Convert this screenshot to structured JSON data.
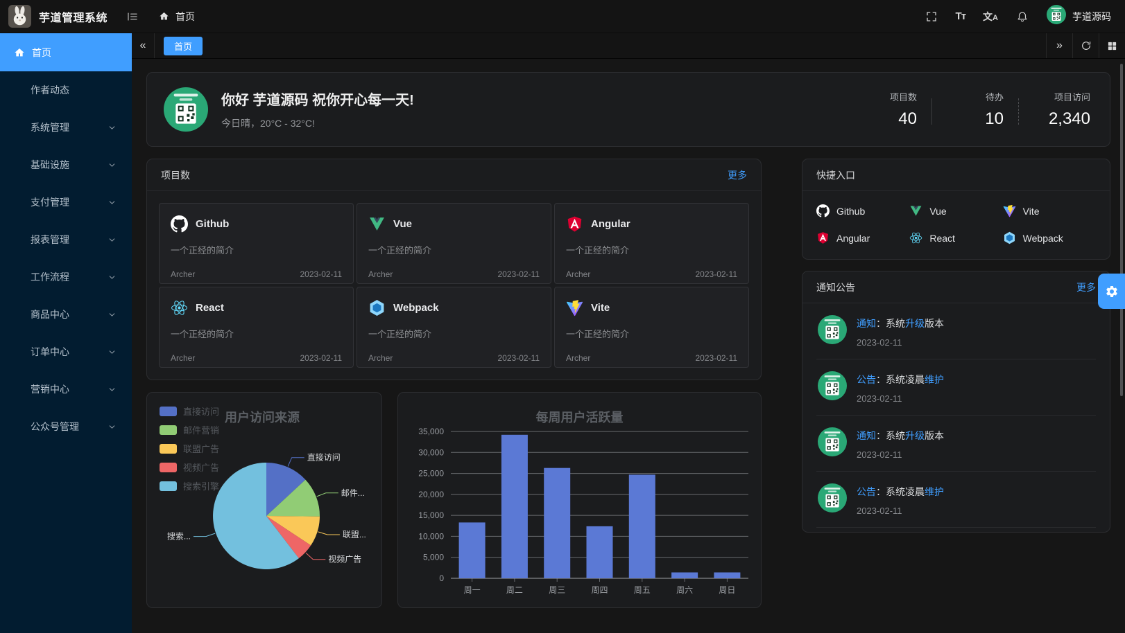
{
  "app": {
    "title": "芋道管理系统",
    "user": "芋道源码"
  },
  "topbar": {
    "breadcrumb": "首页"
  },
  "sidebar": {
    "items": [
      {
        "label": "首页",
        "active": true
      },
      {
        "label": "作者动态"
      },
      {
        "label": "系统管理",
        "expandable": true
      },
      {
        "label": "基础设施",
        "expandable": true
      },
      {
        "label": "支付管理",
        "expandable": true
      },
      {
        "label": "报表管理",
        "expandable": true
      },
      {
        "label": "工作流程",
        "expandable": true
      },
      {
        "label": "商品中心",
        "expandable": true
      },
      {
        "label": "订单中心",
        "expandable": true
      },
      {
        "label": "营销中心",
        "expandable": true
      },
      {
        "label": "公众号管理",
        "expandable": true
      }
    ]
  },
  "tabbar": {
    "tabs": [
      {
        "label": "首页",
        "active": true
      }
    ]
  },
  "welcome": {
    "greeting": "你好 芋道源码 祝你开心每一天!",
    "weather": "今日晴，20°C - 32°C!",
    "stats": [
      {
        "label": "项目数",
        "value": "40"
      },
      {
        "label": "待办",
        "value": "10"
      },
      {
        "label": "项目访问",
        "value": "2,340"
      }
    ]
  },
  "projects": {
    "title": "项目数",
    "more_label": "更多",
    "items": [
      {
        "name": "Github",
        "icon": "github",
        "desc": "一个正经的简介",
        "author": "Archer",
        "date": "2023-02-11"
      },
      {
        "name": "Vue",
        "icon": "vue",
        "desc": "一个正经的简介",
        "author": "Archer",
        "date": "2023-02-11"
      },
      {
        "name": "Angular",
        "icon": "angular",
        "desc": "一个正经的简介",
        "author": "Archer",
        "date": "2023-02-11"
      },
      {
        "name": "React",
        "icon": "react",
        "desc": "一个正经的简介",
        "author": "Archer",
        "date": "2023-02-11"
      },
      {
        "name": "Webpack",
        "icon": "webpack",
        "desc": "一个正经的简介",
        "author": "Archer",
        "date": "2023-02-11"
      },
      {
        "name": "Vite",
        "icon": "vite",
        "desc": "一个正经的简介",
        "author": "Archer",
        "date": "2023-02-11"
      }
    ]
  },
  "shortcuts": {
    "title": "快捷入口",
    "items": [
      {
        "name": "Github",
        "icon": "github"
      },
      {
        "name": "Vue",
        "icon": "vue"
      },
      {
        "name": "Vite",
        "icon": "vite"
      },
      {
        "name": "Angular",
        "icon": "angular"
      },
      {
        "name": "React",
        "icon": "react"
      },
      {
        "name": "Webpack",
        "icon": "webpack"
      }
    ]
  },
  "notices": {
    "title": "通知公告",
    "more_label": "更多",
    "items": [
      {
        "parts": [
          {
            "text": "通知",
            "hl": true
          },
          {
            "text": "：系统",
            "hl": false
          },
          {
            "text": "升级",
            "hl": true
          },
          {
            "text": "版本",
            "hl": false
          }
        ],
        "date": "2023-02-11"
      },
      {
        "parts": [
          {
            "text": "公告",
            "hl": true
          },
          {
            "text": "：系统凌晨",
            "hl": false
          },
          {
            "text": "维护",
            "hl": true
          }
        ],
        "date": "2023-02-11"
      },
      {
        "parts": [
          {
            "text": "通知",
            "hl": true
          },
          {
            "text": "：系统",
            "hl": false
          },
          {
            "text": "升级",
            "hl": true
          },
          {
            "text": "版本",
            "hl": false
          }
        ],
        "date": "2023-02-11"
      },
      {
        "parts": [
          {
            "text": "公告",
            "hl": true
          },
          {
            "text": "：系统凌晨",
            "hl": false
          },
          {
            "text": "维护",
            "hl": true
          }
        ],
        "date": "2023-02-11"
      }
    ]
  },
  "chart_data": [
    {
      "type": "pie",
      "title": "用户访问来源",
      "legend": [
        "直接访问",
        "邮件营销",
        "联盟广告",
        "视频广告",
        "搜索引擎"
      ],
      "labels_display": [
        "直接访问",
        "邮件...",
        "联盟...",
        "视频广告",
        "搜索..."
      ],
      "values": [
        335,
        310,
        234,
        135,
        1548
      ],
      "colors": [
        "#5470c6",
        "#91cc75",
        "#fac858",
        "#ee6666",
        "#73c0de"
      ],
      "legend_position": "top-left"
    },
    {
      "type": "bar",
      "title": "每周用户活跃量",
      "categories": [
        "周一",
        "周二",
        "周三",
        "周四",
        "周五",
        "周六",
        "周日"
      ],
      "values": [
        13300,
        34200,
        26300,
        12400,
        24700,
        1400,
        1400
      ],
      "ylim": [
        0,
        35000
      ],
      "ytick_step": 5000,
      "bar_color": "#5b79d5",
      "grid": "horizontal",
      "xlabel": "",
      "ylabel": ""
    }
  ],
  "colors": {
    "accent": "#409eff",
    "sidebar_bg": "#021c30",
    "panel_bg": "#1b1c1e",
    "link": "#409eff"
  }
}
